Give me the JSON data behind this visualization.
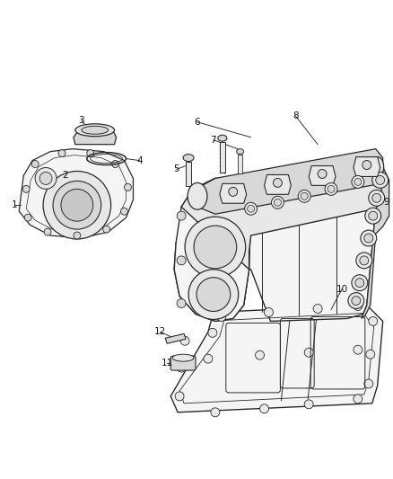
{
  "bg_color": "#ffffff",
  "fig_width": 4.38,
  "fig_height": 5.33,
  "dpi": 100,
  "line_color": "#2a2a2a",
  "fill_light": "#f5f5f5",
  "fill_mid": "#e8e8e8",
  "fill_dark": "#d8d8d8",
  "fill_darker": "#c8c8c8"
}
